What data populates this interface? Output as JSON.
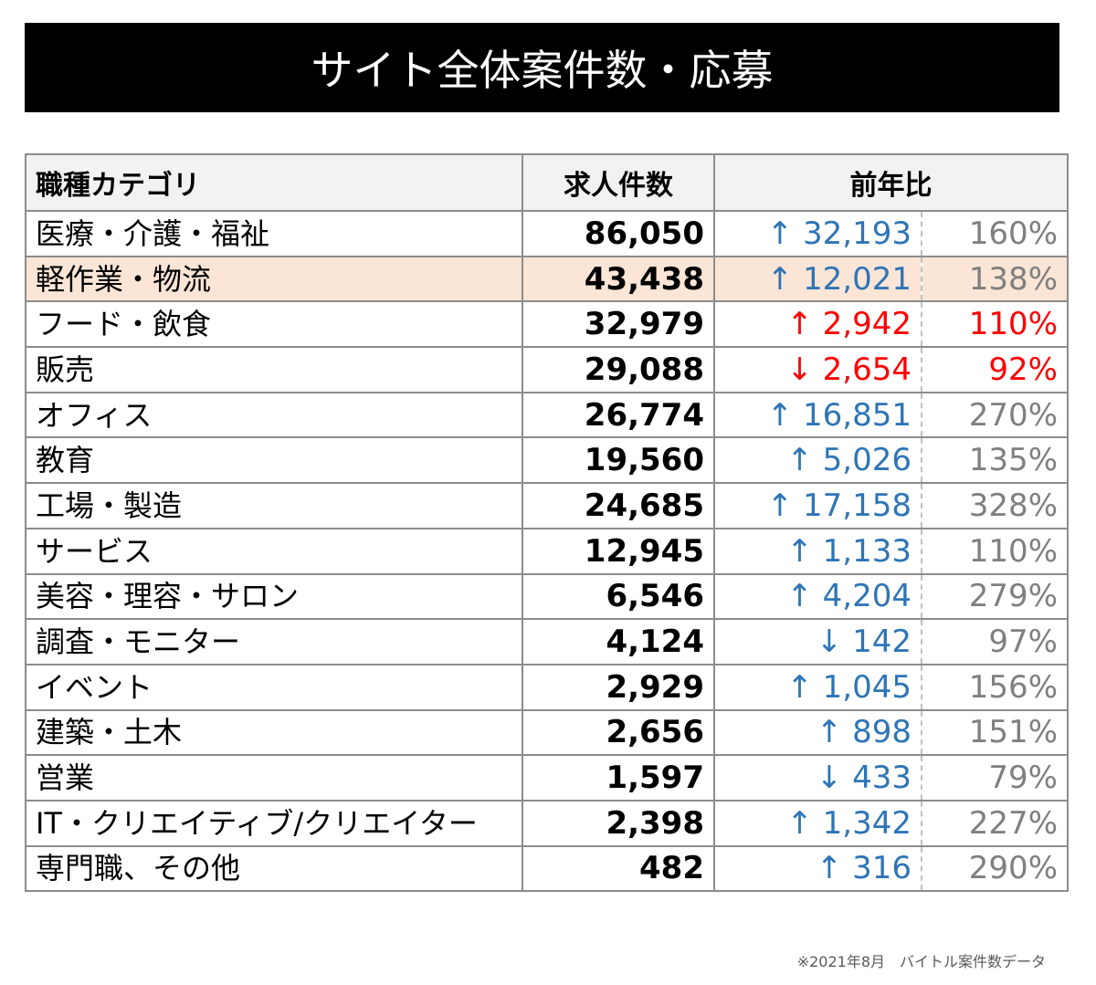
{
  "header": {
    "title": "サイト全体案件数・応募"
  },
  "table": {
    "columns": [
      "職種カテゴリ",
      "求人件数",
      "前年比"
    ],
    "rows": [
      {
        "category": "医療・介護・福祉",
        "count": "86,050",
        "change": "↑ 32,193",
        "ratio": "160%",
        "change_color": "#2e75b6",
        "ratio_color": "#7f7f7f"
      },
      {
        "category": "軽作業・物流",
        "count": "43,438",
        "change": "↑ 12,021",
        "ratio": "138%",
        "change_color": "#2e75b6",
        "ratio_color": "#7f7f7f",
        "highlight_color": "#fbe5d6"
      },
      {
        "category": "フード・飲食",
        "count": "32,979",
        "change": "↑ 2,942",
        "ratio": "110%",
        "change_color": "#ff0000",
        "ratio_color": "#ff0000"
      },
      {
        "category": "販売",
        "count": "29,088",
        "change": "↓ 2,654",
        "ratio": "92%",
        "change_color": "#ff0000",
        "ratio_color": "#ff0000"
      },
      {
        "category": "オフィス",
        "count": "26,774",
        "change": "↑ 16,851",
        "ratio": "270%",
        "change_color": "#2e75b6",
        "ratio_color": "#7f7f7f"
      },
      {
        "category": "教育",
        "count": "19,560",
        "change": "↑ 5,026",
        "ratio": "135%",
        "change_color": "#2e75b6",
        "ratio_color": "#7f7f7f"
      },
      {
        "category": "工場・製造",
        "count": "24,685",
        "change": "↑ 17,158",
        "ratio": "328%",
        "change_color": "#2e75b6",
        "ratio_color": "#7f7f7f"
      },
      {
        "category": "サービス",
        "count": "12,945",
        "change": "↑ 1,133",
        "ratio": "110%",
        "change_color": "#2e75b6",
        "ratio_color": "#7f7f7f"
      },
      {
        "category": "美容・理容・サロン",
        "count": "6,546",
        "change": "↑ 4,204",
        "ratio": "279%",
        "change_color": "#2e75b6",
        "ratio_color": "#7f7f7f"
      },
      {
        "category": "調査・モニター",
        "count": "4,124",
        "change": "↓ 142",
        "ratio": "97%",
        "change_color": "#2e75b6",
        "ratio_color": "#7f7f7f"
      },
      {
        "category": "イベント",
        "count": "2,929",
        "change": "↑ 1,045",
        "ratio": "156%",
        "change_color": "#2e75b6",
        "ratio_color": "#7f7f7f"
      },
      {
        "category": "建築・土木",
        "count": "2,656",
        "change": "↑ 898",
        "ratio": "151%",
        "change_color": "#2e75b6",
        "ratio_color": "#7f7f7f"
      },
      {
        "category": "営業",
        "count": "1,597",
        "change": "↓ 433",
        "ratio": "79%",
        "change_color": "#2e75b6",
        "ratio_color": "#7f7f7f"
      },
      {
        "category": "IT・クリエイティブ/クリエイター",
        "count": "2,398",
        "change": "↑ 1,342",
        "ratio": "227%",
        "change_color": "#2e75b6",
        "ratio_color": "#7f7f7f"
      },
      {
        "category": "専門職、その他",
        "count": "482",
        "change": "↑ 316",
        "ratio": "290%",
        "change_color": "#2e75b6",
        "ratio_color": "#7f7f7f"
      }
    ]
  },
  "footer": {
    "note": "※2021年8月　バイトル案件数データ"
  }
}
